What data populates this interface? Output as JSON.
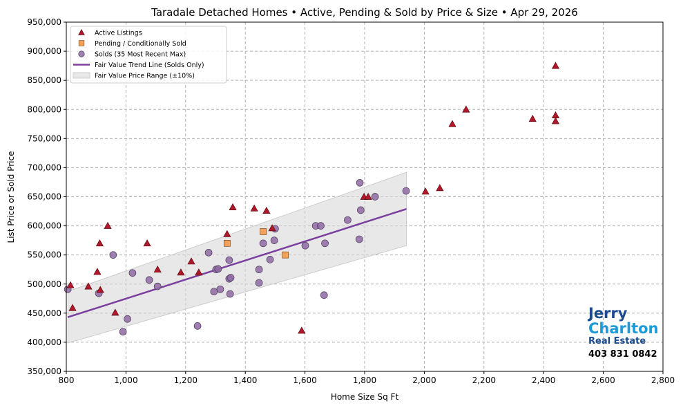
{
  "chart_data": {
    "type": "scatter",
    "title": "Taradale Detached Homes • Active, Pending & Sold by Price & Size • Apr 29, 2026",
    "xlabel": "Home Size Sq Ft",
    "ylabel": "List Price or Sold Price",
    "xlim": [
      800,
      2800
    ],
    "ylim": [
      350000,
      950000
    ],
    "xticks": [
      800,
      1000,
      1200,
      1400,
      1600,
      1800,
      2000,
      2200,
      2400,
      2600,
      2800
    ],
    "xtick_labels": [
      "800",
      "1,000",
      "1,200",
      "1,400",
      "1,600",
      "1,800",
      "2,000",
      "2,200",
      "2,400",
      "2,600",
      "2,800"
    ],
    "yticks": [
      350000,
      400000,
      450000,
      500000,
      550000,
      600000,
      650000,
      700000,
      750000,
      800000,
      850000,
      900000,
      950000
    ],
    "ytick_labels": [
      "350,000",
      "400,000",
      "450,000",
      "500,000",
      "550,000",
      "600,000",
      "650,000",
      "700,000",
      "750,000",
      "800,000",
      "850,000",
      "900,000",
      "950,000"
    ],
    "grid": true,
    "legend_placement": "top-left",
    "series": [
      {
        "name": "Active Listings",
        "marker": "triangle",
        "color": "#b2182b",
        "points": [
          [
            814,
            498000
          ],
          [
            821,
            459000
          ],
          [
            874,
            496000
          ],
          [
            904,
            521000
          ],
          [
            912,
            570000
          ],
          [
            914,
            490000
          ],
          [
            939,
            600000
          ],
          [
            964,
            451000
          ],
          [
            1071,
            570000
          ],
          [
            1106,
            525000
          ],
          [
            1184,
            520000
          ],
          [
            1219,
            539000
          ],
          [
            1244,
            520000
          ],
          [
            1339,
            586000
          ],
          [
            1358,
            632000
          ],
          [
            1430,
            630000
          ],
          [
            1471,
            626000
          ],
          [
            1490,
            596000
          ],
          [
            1589,
            420000
          ],
          [
            1798,
            650000
          ],
          [
            1812,
            650000
          ],
          [
            2004,
            659000
          ],
          [
            2052,
            665000
          ],
          [
            2094,
            775000
          ],
          [
            2140,
            800000
          ],
          [
            2363,
            784000
          ],
          [
            2440,
            875000
          ],
          [
            2440,
            790000
          ],
          [
            2440,
            780000
          ]
        ]
      },
      {
        "name": "Pending / Conditionally Sold",
        "marker": "square",
        "color": "#f4a259",
        "points": [
          [
            1339,
            570000
          ],
          [
            1460,
            590000
          ],
          [
            1534,
            550000
          ]
        ]
      },
      {
        "name": "Solds (35 Most Recent Max)",
        "marker": "circle",
        "color": "#8e6aa3",
        "points": [
          [
            805,
            491000
          ],
          [
            909,
            484000
          ],
          [
            957,
            550000
          ],
          [
            990,
            418000
          ],
          [
            1005,
            440000
          ],
          [
            1022,
            519000
          ],
          [
            1078,
            507000
          ],
          [
            1106,
            496000
          ],
          [
            1240,
            428000
          ],
          [
            1277,
            554000
          ],
          [
            1295,
            487000
          ],
          [
            1302,
            525000
          ],
          [
            1309,
            526000
          ],
          [
            1316,
            491000
          ],
          [
            1346,
            541000
          ],
          [
            1346,
            509000
          ],
          [
            1351,
            511000
          ],
          [
            1349,
            483000
          ],
          [
            1446,
            525000
          ],
          [
            1446,
            502000
          ],
          [
            1460,
            570000
          ],
          [
            1497,
            575000
          ],
          [
            1483,
            542000
          ],
          [
            1500,
            595000
          ],
          [
            1601,
            566000
          ],
          [
            1636,
            600000
          ],
          [
            1653,
            600000
          ],
          [
            1667,
            570000
          ],
          [
            1664,
            481000
          ],
          [
            1743,
            610000
          ],
          [
            1782,
            577000
          ],
          [
            1784,
            674000
          ],
          [
            1787,
            627000
          ],
          [
            1835,
            650000
          ],
          [
            1939,
            660000
          ]
        ]
      }
    ],
    "trend_line": {
      "name": "Fair Value Trend Line (Solds Only)",
      "color": "#7b3f9e",
      "points": [
        [
          805,
          443000
        ],
        [
          1940,
          629000
        ]
      ]
    },
    "range_band": {
      "name": "Fair Value Price Range (±10%)",
      "color": "#d9d9d9",
      "pct": 10
    }
  },
  "logo": {
    "line1": "Jerry",
    "line2": "Charlton",
    "line3": "Real Estate",
    "phone": "403 831 0842"
  }
}
